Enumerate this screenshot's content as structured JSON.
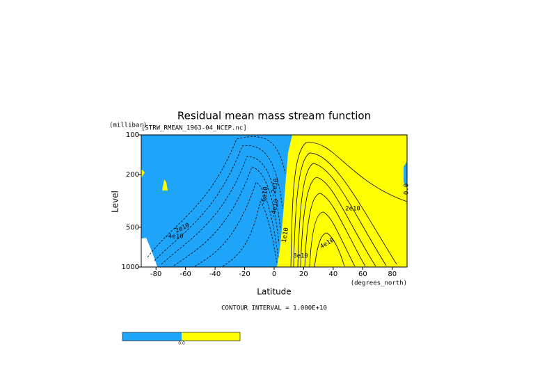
{
  "chart_data": {
    "type": "contour",
    "title": "Residual mean mass stream function",
    "subtitle": "[STRW_RMEAN_1963-04_NCEP.nc]",
    "y_unit": "(millibar)",
    "y_label": "Level",
    "x_label": "Latitude",
    "x_unit": "(degrees_north)",
    "annotation": "CONTOUR INTERVAL = 1.000E+10",
    "xlim": [
      -90,
      90
    ],
    "xticks": [
      -80,
      -60,
      -40,
      -20,
      0,
      20,
      40,
      60,
      80
    ],
    "ylim": [
      1000,
      100
    ],
    "yticks": [
      100,
      200,
      500,
      1000
    ],
    "log_y": true,
    "contour_labels": [
      "2e10",
      "-2e10",
      "-4e10",
      "-6e10",
      "-4e10",
      "2e10",
      "1e10",
      "4e10",
      "8e10",
      "0.0"
    ],
    "colors": {
      "negative": "#1ea5fa",
      "positive": "#ffff00"
    },
    "colorbar_label": "0.0"
  }
}
